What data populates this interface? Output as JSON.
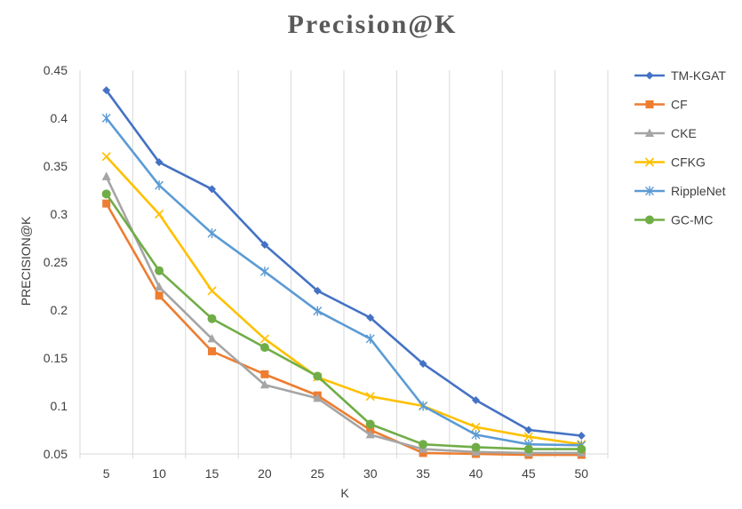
{
  "chart_data": {
    "type": "line",
    "title": "Precision@K",
    "xlabel": "K",
    "ylabel": "PRECISION@K",
    "categories": [
      "5",
      "10",
      "15",
      "20",
      "25",
      "30",
      "35",
      "40",
      "45",
      "50"
    ],
    "ylim": [
      0.05,
      0.45
    ],
    "yticks": [
      "0.05",
      "0.1",
      "0.15",
      "0.2",
      "0.25",
      "0.3",
      "0.35",
      "0.4",
      "0.45"
    ],
    "grid": "vertical",
    "legend_position": "right",
    "series": [
      {
        "name": "TM-KGAT",
        "color": "#4472C4",
        "marker": "diamond",
        "values": [
          0.429,
          0.354,
          0.326,
          0.268,
          0.22,
          0.192,
          0.144,
          0.106,
          0.075,
          0.069
        ]
      },
      {
        "name": "CF",
        "color": "#ED7D31",
        "marker": "square",
        "values": [
          0.311,
          0.215,
          0.157,
          0.133,
          0.111,
          0.075,
          0.051,
          0.05,
          0.049,
          0.049
        ]
      },
      {
        "name": "CKE",
        "color": "#A5A5A5",
        "marker": "triangle",
        "values": [
          0.339,
          0.224,
          0.17,
          0.122,
          0.108,
          0.07,
          0.055,
          0.052,
          0.051,
          0.051
        ]
      },
      {
        "name": "CFKG",
        "color": "#FFC000",
        "marker": "x",
        "values": [
          0.36,
          0.3,
          0.22,
          0.17,
          0.13,
          0.11,
          0.1,
          0.078,
          0.068,
          0.06
        ]
      },
      {
        "name": "RippleNet",
        "color": "#5B9BD5",
        "marker": "star",
        "values": [
          0.4,
          0.33,
          0.28,
          0.24,
          0.199,
          0.17,
          0.1,
          0.07,
          0.06,
          0.059
        ]
      },
      {
        "name": "GC-MC",
        "color": "#70AD47",
        "marker": "circle",
        "values": [
          0.321,
          0.241,
          0.191,
          0.161,
          0.131,
          0.081,
          0.06,
          0.057,
          0.055,
          0.055
        ]
      }
    ]
  }
}
